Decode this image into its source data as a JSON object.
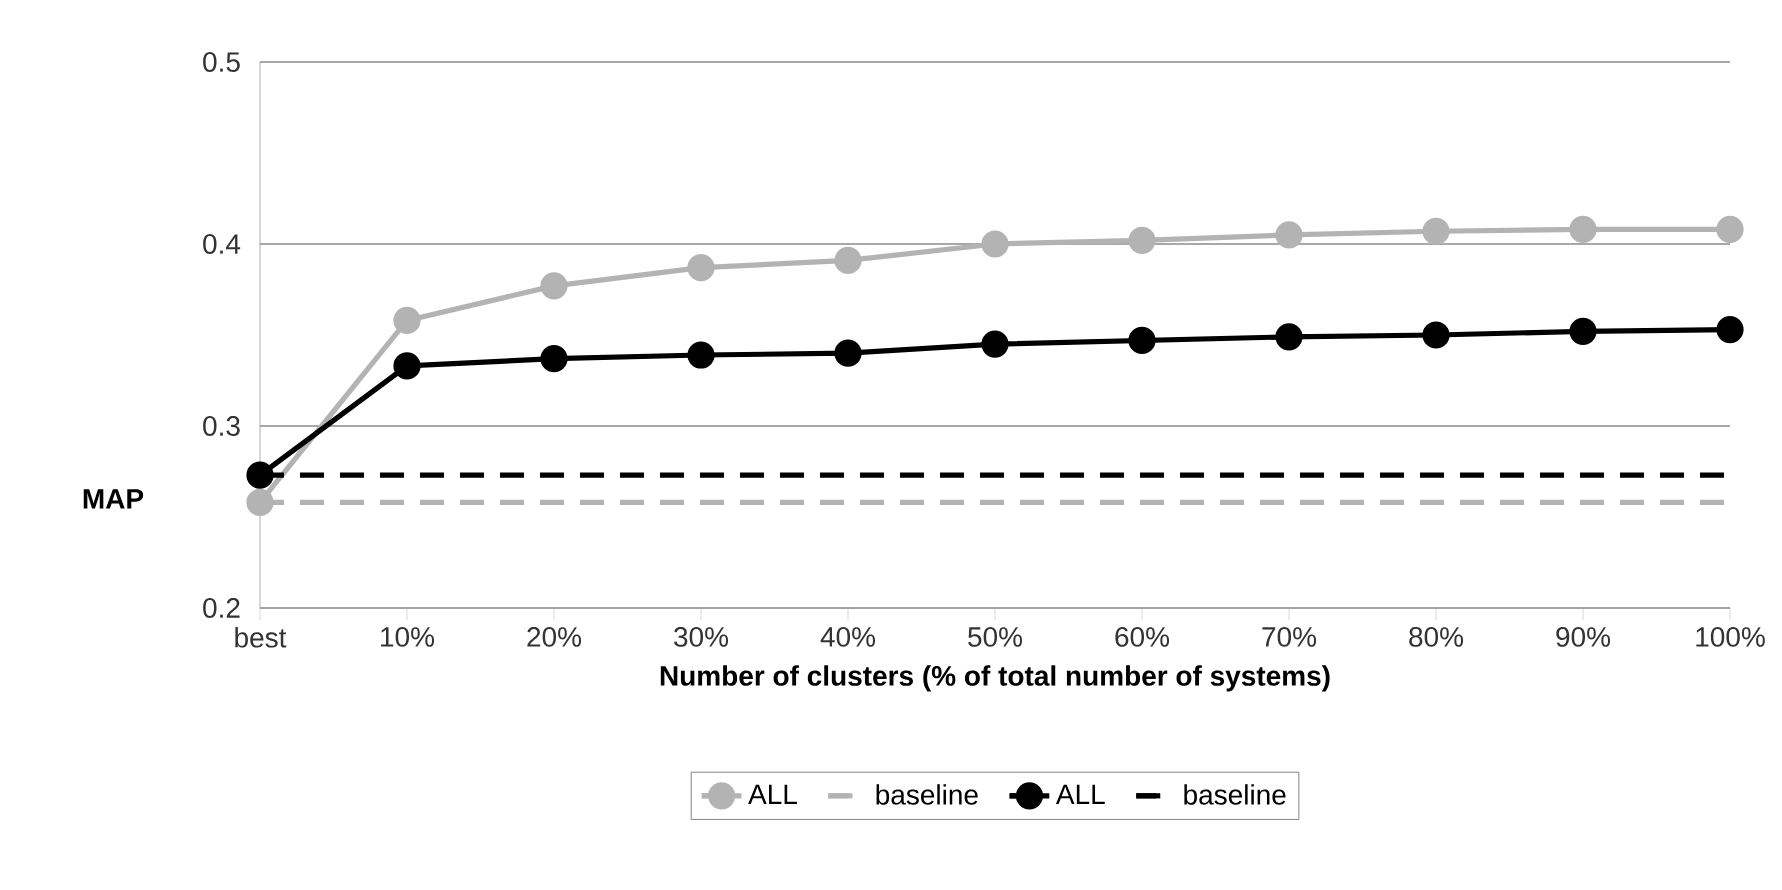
{
  "chart_data": {
    "type": "line",
    "xlabel": "Number of clusters (% of total number of systems)",
    "ylabel": "MAP",
    "categories": [
      "best",
      "10%",
      "20%",
      "30%",
      "40%",
      "50%",
      "60%",
      "70%",
      "80%",
      "90%",
      "100%"
    ],
    "ylim": [
      0.2,
      0.5
    ],
    "yticks": [
      0.2,
      0.3,
      0.4,
      0.5
    ],
    "grid": "y",
    "legend": "bottom",
    "series": [
      {
        "name": "ALL",
        "color": "#b3b3b3",
        "marker": "circle",
        "line_style": "solid",
        "values": [
          0.258,
          0.358,
          0.377,
          0.387,
          0.391,
          0.4,
          0.402,
          0.405,
          0.407,
          0.408,
          0.408
        ]
      },
      {
        "name": "baseline",
        "color": "#b3b3b3",
        "marker": "none",
        "line_style": "dashed",
        "values": [
          0.258,
          0.258,
          0.258,
          0.258,
          0.258,
          0.258,
          0.258,
          0.258,
          0.258,
          0.258,
          0.258
        ]
      },
      {
        "name": "ALL",
        "color": "#000000",
        "marker": "circle",
        "line_style": "solid",
        "values": [
          0.273,
          0.333,
          0.337,
          0.339,
          0.34,
          0.345,
          0.347,
          0.349,
          0.35,
          0.352,
          0.353
        ]
      },
      {
        "name": "baseline",
        "color": "#000000",
        "marker": "none",
        "line_style": "dashed",
        "values": [
          0.273,
          0.273,
          0.273,
          0.273,
          0.273,
          0.273,
          0.273,
          0.273,
          0.273,
          0.273,
          0.273
        ]
      }
    ]
  }
}
